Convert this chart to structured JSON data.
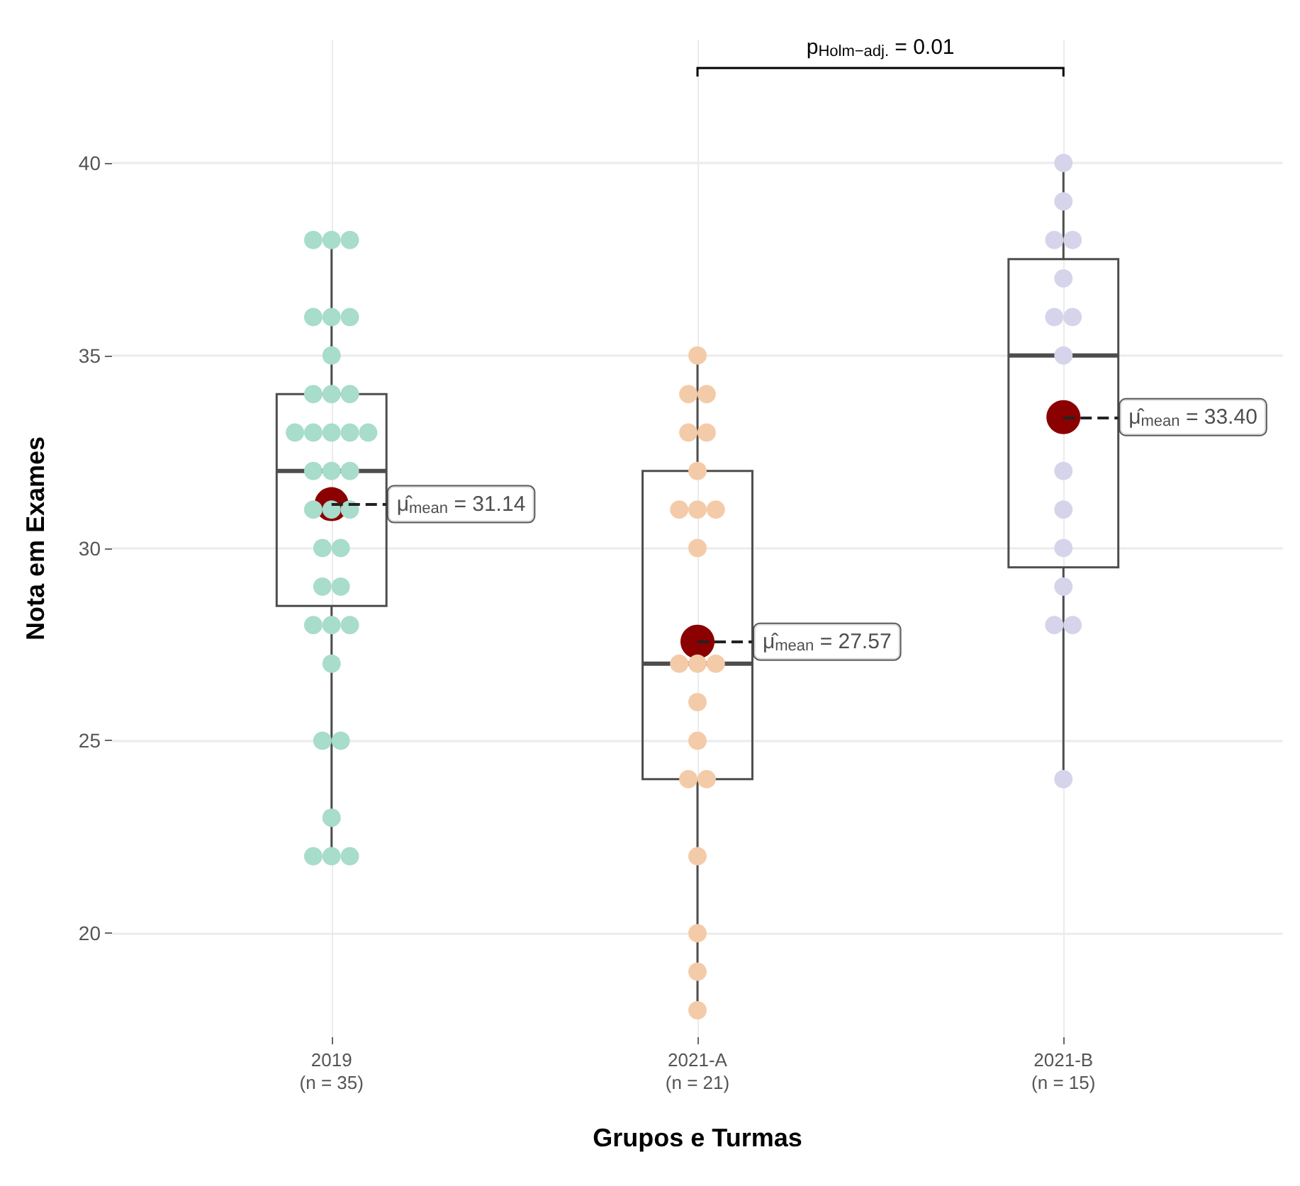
{
  "chart_data": {
    "type": "box",
    "xlabel": "Grupos e Turmas",
    "ylabel": "Nota em Exames",
    "categories": [
      "2019\n(n = 35)",
      "2021-A\n(n = 21)",
      "2021-B\n(n = 15)"
    ],
    "ylim": [
      17.3,
      43.2
    ],
    "yticks": [
      20,
      25,
      30,
      35,
      40
    ],
    "grid": true,
    "marker": "circle",
    "series": [
      {
        "type": "box",
        "color": "#4d4d4d",
        "boxes": [
          {
            "low": 22,
            "q1": 28.5,
            "median": 32,
            "q3": 34,
            "high": 38
          },
          {
            "low": 18,
            "q1": 24,
            "median": 27,
            "q3": 32,
            "high": 35
          },
          {
            "low": 24,
            "q1": 29.5,
            "median": 35,
            "q3": 37.5,
            "high": 40
          }
        ]
      },
      {
        "type": "scatter",
        "color": "#a8dccb",
        "x": [
          "2019\n(n = 35)",
          "2019\n(n = 35)",
          "2019\n(n = 35)",
          "2019\n(n = 35)",
          "2019\n(n = 35)",
          "2019\n(n = 35)",
          "2019\n(n = 35)",
          "2019\n(n = 35)",
          "2019\n(n = 35)",
          "2019\n(n = 35)",
          "2019\n(n = 35)",
          "2019\n(n = 35)",
          "2019\n(n = 35)",
          "2019\n(n = 35)",
          "2019\n(n = 35)",
          "2019\n(n = 35)",
          "2019\n(n = 35)",
          "2019\n(n = 35)",
          "2019\n(n = 35)",
          "2019\n(n = 35)",
          "2019\n(n = 35)",
          "2019\n(n = 35)",
          "2019\n(n = 35)",
          "2019\n(n = 35)",
          "2019\n(n = 35)",
          "2019\n(n = 35)",
          "2019\n(n = 35)",
          "2019\n(n = 35)",
          "2019\n(n = 35)",
          "2019\n(n = 35)",
          "2019\n(n = 35)",
          "2019\n(n = 35)",
          "2019\n(n = 35)",
          "2019\n(n = 35)",
          "2019\n(n = 35)"
        ],
        "values": [
          38,
          38,
          38,
          36,
          36,
          36,
          35,
          34,
          34,
          34,
          33,
          33,
          33,
          33,
          33,
          32,
          32,
          32,
          31,
          31,
          31,
          30,
          30,
          29,
          29,
          28,
          28,
          28,
          27,
          25,
          25,
          23,
          22,
          22,
          22
        ]
      },
      {
        "type": "scatter",
        "color": "#f4cba8",
        "x": [
          "2021-A\n(n = 21)",
          "2021-A\n(n = 21)",
          "2021-A\n(n = 21)",
          "2021-A\n(n = 21)",
          "2021-A\n(n = 21)",
          "2021-A\n(n = 21)",
          "2021-A\n(n = 21)",
          "2021-A\n(n = 21)",
          "2021-A\n(n = 21)",
          "2021-A\n(n = 21)",
          "2021-A\n(n = 21)",
          "2021-A\n(n = 21)",
          "2021-A\n(n = 21)",
          "2021-A\n(n = 21)",
          "2021-A\n(n = 21)",
          "2021-A\n(n = 21)",
          "2021-A\n(n = 21)",
          "2021-A\n(n = 21)",
          "2021-A\n(n = 21)",
          "2021-A\n(n = 21)",
          "2021-A\n(n = 21)"
        ],
        "values": [
          35,
          34,
          34,
          33,
          33,
          32,
          31,
          31,
          31,
          30,
          27,
          27,
          27,
          26,
          25,
          24,
          24,
          22,
          20,
          19,
          18
        ]
      },
      {
        "type": "scatter",
        "color": "#d6d4eb",
        "x": [
          "2021-B\n(n = 15)",
          "2021-B\n(n = 15)",
          "2021-B\n(n = 15)",
          "2021-B\n(n = 15)",
          "2021-B\n(n = 15)",
          "2021-B\n(n = 15)",
          "2021-B\n(n = 15)",
          "2021-B\n(n = 15)",
          "2021-B\n(n = 15)",
          "2021-B\n(n = 15)",
          "2021-B\n(n = 15)",
          "2021-B\n(n = 15)",
          "2021-B\n(n = 15)",
          "2021-B\n(n = 15)",
          "2021-B\n(n = 15)"
        ],
        "values": [
          40,
          39,
          38,
          38,
          37,
          36,
          36,
          35,
          32,
          31,
          30,
          29,
          28,
          28,
          24
        ]
      },
      {
        "type": "scatter",
        "color": "#8b0000",
        "x": [
          "2019\n(n = 35)",
          "2021-A\n(n = 21)",
          "2021-B\n(n = 15)"
        ],
        "values": [
          31.14,
          27.57,
          33.4
        ]
      }
    ],
    "annotations": [
      {
        "text": "μ̂$_{mean}$ = 31.14",
        "x": "2019\n(n = 35)",
        "y": 31.14
      },
      {
        "text": "μ̂$_{mean}$ = 27.57",
        "x": "2021-A\n(n = 21)",
        "y": 27.57
      },
      {
        "text": "μ̂$_{mean}$ = 33.40",
        "x": "2021-B\n(n = 15)",
        "y": 33.4
      },
      "p$_{Holm−adj.}$ = 0.01"
    ]
  }
}
